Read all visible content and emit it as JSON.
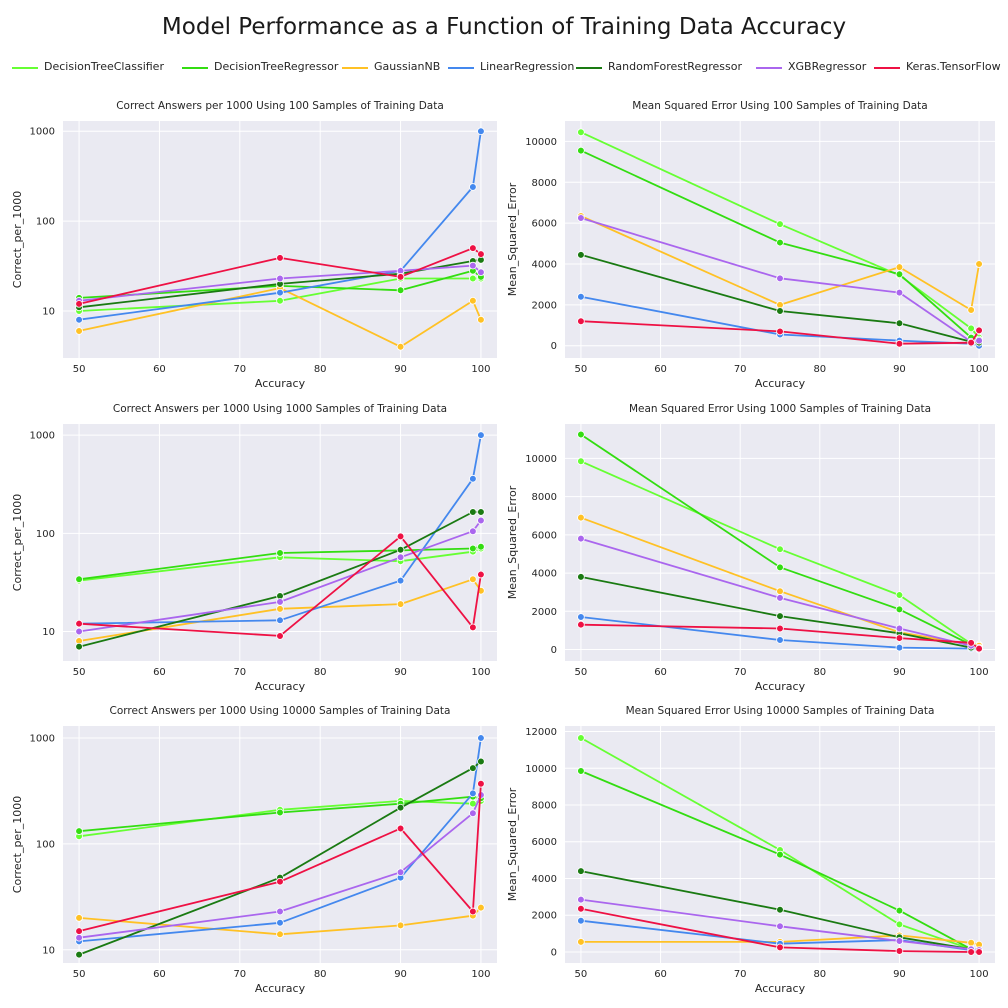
{
  "title": "Model Performance as a Function of Training Data Accuracy",
  "legend": [
    {
      "name": "DecisionTreeClassifier",
      "color": "#66ff33"
    },
    {
      "name": "DecisionTreeRegressor",
      "color": "#33dd11"
    },
    {
      "name": "GaussianNB",
      "color": "#ffc125"
    },
    {
      "name": "LinearRegression",
      "color": "#4488ee"
    },
    {
      "name": "RandomForestRegressor",
      "color": "#1a7a12"
    },
    {
      "name": "XGBRegressor",
      "color": "#aa66ee"
    },
    {
      "name": "Keras.TensorFlow",
      "color": "#ee1144"
    }
  ],
  "chart_data": [
    {
      "type": "line",
      "title": "Correct Answers per 1000 Using 100 Samples of Training Data",
      "xlabel": "Accuracy",
      "ylabel": "Correct_per_1000",
      "yscale": "log",
      "ylim": [
        3,
        1300
      ],
      "xlim": [
        48,
        102
      ],
      "xticks": [
        50,
        60,
        70,
        80,
        90,
        100
      ],
      "yticks": [
        10,
        100,
        1000
      ],
      "grid": true,
      "x": [
        50,
        75,
        90,
        99,
        100
      ],
      "series": [
        {
          "name": "DecisionTreeClassifier",
          "values": [
            10,
            13,
            23,
            23,
            23
          ]
        },
        {
          "name": "DecisionTreeRegressor",
          "values": [
            14,
            19,
            17,
            28,
            24
          ]
        },
        {
          "name": "GaussianNB",
          "values": [
            6,
            18,
            4,
            13,
            8
          ]
        },
        {
          "name": "LinearRegression",
          "values": [
            8,
            16,
            28,
            240,
            1000
          ]
        },
        {
          "name": "RandomForestRegressor",
          "values": [
            11,
            20,
            26,
            36,
            37
          ]
        },
        {
          "name": "XGBRegressor",
          "values": [
            13,
            23,
            28,
            32,
            27
          ]
        },
        {
          "name": "Keras.TensorFlow",
          "values": [
            12,
            39,
            24,
            50,
            43
          ]
        }
      ]
    },
    {
      "type": "line",
      "title": "Mean Squared Error Using 100 Samples of Training Data",
      "xlabel": "Accuracy",
      "ylabel": "Mean_Squared_Error",
      "yscale": "linear",
      "ylim": [
        -600,
        11000
      ],
      "xlim": [
        48,
        102
      ],
      "xticks": [
        50,
        60,
        70,
        80,
        90,
        100
      ],
      "yticks": [
        0,
        2000,
        4000,
        6000,
        8000,
        10000
      ],
      "grid": true,
      "x": [
        50,
        75,
        90,
        99,
        100
      ],
      "series": [
        {
          "name": "DecisionTreeClassifier",
          "values": [
            10450,
            5950,
            3450,
            850,
            400
          ]
        },
        {
          "name": "DecisionTreeRegressor",
          "values": [
            9550,
            5050,
            3500,
            400,
            300
          ]
        },
        {
          "name": "GaussianNB",
          "values": [
            6350,
            2000,
            3850,
            1750,
            4000
          ]
        },
        {
          "name": "LinearRegression",
          "values": [
            2400,
            550,
            250,
            100,
            0
          ]
        },
        {
          "name": "RandomForestRegressor",
          "values": [
            4450,
            1700,
            1100,
            200,
            150
          ]
        },
        {
          "name": "XGBRegressor",
          "values": [
            6250,
            3300,
            2600,
            200,
            250
          ]
        },
        {
          "name": "Keras.TensorFlow",
          "values": [
            1200,
            700,
            100,
            150,
            750
          ]
        }
      ]
    },
    {
      "type": "line",
      "title": "Correct Answers per 1000 Using 1000 Samples of Training Data",
      "xlabel": "Accuracy",
      "ylabel": "Correct_per_1000",
      "yscale": "log",
      "ylim": [
        5,
        1300
      ],
      "xlim": [
        48,
        102
      ],
      "xticks": [
        50,
        60,
        70,
        80,
        90,
        100
      ],
      "yticks": [
        10,
        100,
        1000
      ],
      "grid": true,
      "x": [
        50,
        75,
        90,
        99,
        100
      ],
      "series": [
        {
          "name": "DecisionTreeClassifier",
          "values": [
            33,
            57,
            52,
            65,
            70
          ]
        },
        {
          "name": "DecisionTreeRegressor",
          "values": [
            34,
            63,
            67,
            70,
            73
          ]
        },
        {
          "name": "GaussianNB",
          "values": [
            8,
            17,
            19,
            34,
            26
          ]
        },
        {
          "name": "LinearRegression",
          "values": [
            12,
            13,
            33,
            360,
            1000
          ]
        },
        {
          "name": "RandomForestRegressor",
          "values": [
            7,
            23,
            68,
            165,
            165
          ]
        },
        {
          "name": "XGBRegressor",
          "values": [
            10,
            20,
            57,
            105,
            135
          ]
        },
        {
          "name": "Keras.TensorFlow",
          "values": [
            12,
            9,
            93,
            11,
            38
          ]
        }
      ]
    },
    {
      "type": "line",
      "title": "Mean Squared Error Using 1000 Samples of Training Data",
      "xlabel": "Accuracy",
      "ylabel": "Mean_Squared_Error",
      "yscale": "linear",
      "ylim": [
        -600,
        11800
      ],
      "xlim": [
        48,
        102
      ],
      "xticks": [
        50,
        60,
        70,
        80,
        90,
        100
      ],
      "yticks": [
        0,
        2000,
        4000,
        6000,
        8000,
        10000
      ],
      "grid": true,
      "x": [
        50,
        75,
        90,
        99,
        100
      ],
      "series": [
        {
          "name": "DecisionTreeClassifier",
          "values": [
            9850,
            5250,
            2850,
            300,
            250
          ]
        },
        {
          "name": "DecisionTreeRegressor",
          "values": [
            11250,
            4300,
            2100,
            250,
            200
          ]
        },
        {
          "name": "GaussianNB",
          "values": [
            6900,
            3050,
            900,
            250,
            200
          ]
        },
        {
          "name": "LinearRegression",
          "values": [
            1700,
            500,
            100,
            50,
            0
          ]
        },
        {
          "name": "RandomForestRegressor",
          "values": [
            3800,
            1750,
            850,
            100,
            50
          ]
        },
        {
          "name": "XGBRegressor",
          "values": [
            5800,
            2700,
            1100,
            200,
            100
          ]
        },
        {
          "name": "Keras.TensorFlow",
          "values": [
            1300,
            1100,
            600,
            350,
            50
          ]
        }
      ]
    },
    {
      "type": "line",
      "title": "Correct Answers per 1000 Using 10000 Samples of Training Data",
      "xlabel": "Accuracy",
      "ylabel": "Correct_per_1000",
      "yscale": "log",
      "ylim": [
        7.5,
        1300
      ],
      "xlim": [
        48,
        102
      ],
      "xticks": [
        50,
        60,
        70,
        80,
        90,
        100
      ],
      "yticks": [
        10,
        100,
        1000
      ],
      "grid": true,
      "x": [
        50,
        75,
        90,
        99,
        100
      ],
      "series": [
        {
          "name": "DecisionTreeClassifier",
          "values": [
            118,
            210,
            255,
            240,
            255
          ]
        },
        {
          "name": "DecisionTreeRegressor",
          "values": [
            132,
            198,
            240,
            280,
            270
          ]
        },
        {
          "name": "GaussianNB",
          "values": [
            20,
            14,
            17,
            21,
            25
          ]
        },
        {
          "name": "LinearRegression",
          "values": [
            12,
            18,
            48,
            300,
            1000
          ]
        },
        {
          "name": "RandomForestRegressor",
          "values": [
            9,
            48,
            220,
            520,
            600
          ]
        },
        {
          "name": "XGBRegressor",
          "values": [
            13,
            23,
            54,
            195,
            290
          ]
        },
        {
          "name": "Keras.TensorFlow",
          "values": [
            15,
            44,
            140,
            23,
            370
          ]
        }
      ]
    },
    {
      "type": "line",
      "title": "Mean Squared Error Using 10000 Samples of Training Data",
      "xlabel": "Accuracy",
      "ylabel": "Mean_Squared_Error",
      "yscale": "linear",
      "ylim": [
        -600,
        12300
      ],
      "xlim": [
        48,
        102
      ],
      "xticks": [
        50,
        60,
        70,
        80,
        90,
        100
      ],
      "yticks": [
        0,
        2000,
        4000,
        6000,
        8000,
        10000,
        12000
      ],
      "grid": true,
      "x": [
        50,
        75,
        90,
        99,
        100
      ],
      "series": [
        {
          "name": "DecisionTreeClassifier",
          "values": [
            11650,
            5550,
            1500,
            150,
            100
          ]
        },
        {
          "name": "DecisionTreeRegressor",
          "values": [
            9850,
            5300,
            2250,
            150,
            100
          ]
        },
        {
          "name": "GaussianNB",
          "values": [
            550,
            550,
            900,
            500,
            400
          ]
        },
        {
          "name": "LinearRegression",
          "values": [
            1700,
            450,
            650,
            100,
            50
          ]
        },
        {
          "name": "RandomForestRegressor",
          "values": [
            4400,
            2300,
            800,
            150,
            100
          ]
        },
        {
          "name": "XGBRegressor",
          "values": [
            2850,
            1400,
            600,
            150,
            100
          ]
        },
        {
          "name": "Keras.TensorFlow",
          "values": [
            2350,
            250,
            50,
            0,
            0
          ]
        }
      ]
    }
  ]
}
